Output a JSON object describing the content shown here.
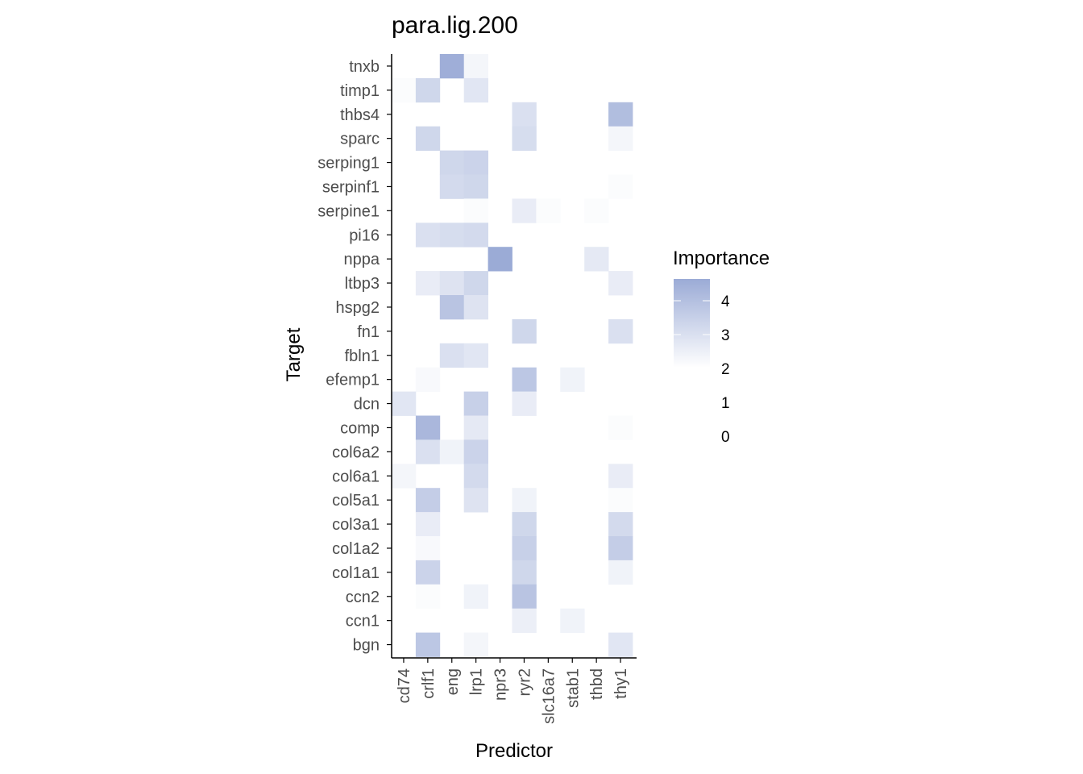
{
  "chart_data": {
    "type": "heatmap",
    "title": "para.lig.200",
    "xlabel": "Predictor",
    "ylabel": "Target",
    "x": [
      "cd74",
      "crlf1",
      "eng",
      "lrp1",
      "npr3",
      "ryr2",
      "slc16a7",
      "stab1",
      "thbd",
      "thy1"
    ],
    "y": [
      "tnxb",
      "timp1",
      "thbs4",
      "sparc",
      "serping1",
      "serpinf1",
      "serpine1",
      "pi16",
      "nppa",
      "ltbp3",
      "hspg2",
      "fn1",
      "fbln1",
      "efemp1",
      "dcn",
      "comp",
      "col6a2",
      "col6a1",
      "col5a1",
      "col3a1",
      "col1a2",
      "col1a1",
      "ccn2",
      "ccn1",
      "bgn"
    ],
    "values": [
      [
        null,
        null,
        4.6,
        2.3,
        null,
        null,
        null,
        null,
        null,
        null
      ],
      [
        2.1,
        3.3,
        null,
        2.8,
        null,
        null,
        null,
        null,
        null,
        null
      ],
      [
        null,
        null,
        null,
        null,
        null,
        3.0,
        null,
        null,
        null,
        4.1
      ],
      [
        null,
        3.3,
        null,
        null,
        null,
        3.1,
        null,
        null,
        null,
        2.3
      ],
      [
        null,
        null,
        3.3,
        3.4,
        null,
        null,
        null,
        null,
        null,
        null
      ],
      [
        null,
        null,
        3.2,
        3.3,
        null,
        null,
        null,
        null,
        null,
        2.1
      ],
      [
        null,
        null,
        null,
        2.1,
        null,
        2.6,
        2.1,
        null,
        2.1,
        null
      ],
      [
        null,
        3.0,
        3.1,
        3.2,
        null,
        null,
        null,
        null,
        null,
        null
      ],
      [
        null,
        null,
        null,
        null,
        4.7,
        null,
        null,
        null,
        2.7,
        null
      ],
      [
        null,
        2.6,
        2.9,
        3.3,
        null,
        null,
        null,
        null,
        null,
        2.6
      ],
      [
        null,
        null,
        3.9,
        2.9,
        null,
        null,
        null,
        null,
        null,
        null
      ],
      [
        null,
        null,
        null,
        null,
        null,
        3.3,
        null,
        null,
        null,
        3.0
      ],
      [
        null,
        null,
        3.0,
        2.8,
        null,
        null,
        null,
        null,
        null,
        null
      ],
      [
        null,
        2.2,
        null,
        null,
        null,
        3.8,
        null,
        2.4,
        null,
        null
      ],
      [
        2.8,
        null,
        null,
        3.5,
        null,
        2.6,
        null,
        null,
        null,
        null
      ],
      [
        null,
        4.3,
        null,
        2.7,
        null,
        null,
        null,
        null,
        null,
        2.1
      ],
      [
        null,
        3.0,
        2.4,
        3.4,
        null,
        null,
        null,
        null,
        null,
        null
      ],
      [
        2.3,
        null,
        null,
        3.2,
        null,
        null,
        null,
        null,
        null,
        2.6
      ],
      [
        null,
        3.6,
        null,
        2.9,
        null,
        2.4,
        null,
        null,
        null,
        2.1
      ],
      [
        null,
        2.6,
        null,
        null,
        null,
        3.3,
        null,
        null,
        null,
        3.2
      ],
      [
        null,
        2.2,
        null,
        null,
        null,
        3.5,
        null,
        null,
        null,
        3.6
      ],
      [
        null,
        3.4,
        null,
        null,
        null,
        3.3,
        null,
        null,
        null,
        2.4
      ],
      [
        null,
        2.1,
        null,
        2.4,
        null,
        3.9,
        null,
        null,
        null,
        null
      ],
      [
        null,
        null,
        null,
        null,
        null,
        2.5,
        null,
        2.4,
        null,
        null
      ],
      [
        null,
        3.8,
        null,
        2.3,
        null,
        null,
        null,
        null,
        null,
        2.8
      ]
    ],
    "legend": {
      "title": "Importance",
      "ticks": [
        "4",
        "3",
        "2",
        "1",
        "0"
      ],
      "position": "right",
      "color_high": "#9babd6",
      "color_low": "#ffffff"
    },
    "grid": false
  }
}
